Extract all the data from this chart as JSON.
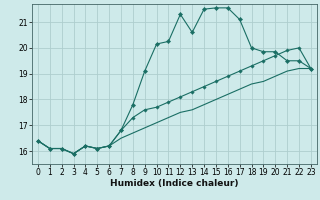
{
  "xlabel": "Humidex (Indice chaleur)",
  "bg_color": "#ceeaea",
  "grid_color": "#aecece",
  "line_color": "#1a6e64",
  "xlim": [
    -0.5,
    23.5
  ],
  "ylim": [
    15.5,
    21.7
  ],
  "xticks": [
    0,
    1,
    2,
    3,
    4,
    5,
    6,
    7,
    8,
    9,
    10,
    11,
    12,
    13,
    14,
    15,
    16,
    17,
    18,
    19,
    20,
    21,
    22,
    23
  ],
  "yticks": [
    16,
    17,
    18,
    19,
    20,
    21
  ],
  "line1_x": [
    0,
    1,
    2,
    3,
    4,
    5,
    6,
    7,
    8,
    9,
    10,
    11,
    12,
    13,
    14,
    15,
    16,
    17,
    18,
    19,
    20,
    21,
    22,
    23
  ],
  "line1_y": [
    16.4,
    16.1,
    16.1,
    15.9,
    16.2,
    16.1,
    16.2,
    16.8,
    17.8,
    19.1,
    20.15,
    20.25,
    21.3,
    20.6,
    21.5,
    21.55,
    21.55,
    21.1,
    20.0,
    19.85,
    19.85,
    19.5,
    19.5,
    19.2
  ],
  "line2_x": [
    0,
    1,
    2,
    3,
    4,
    5,
    6,
    7,
    8,
    9,
    10,
    11,
    12,
    13,
    14,
    15,
    16,
    17,
    18,
    19,
    20,
    21,
    22,
    23
  ],
  "line2_y": [
    16.4,
    16.1,
    16.1,
    15.9,
    16.2,
    16.1,
    16.2,
    16.8,
    17.3,
    17.6,
    17.7,
    17.9,
    18.1,
    18.3,
    18.5,
    18.7,
    18.9,
    19.1,
    19.3,
    19.5,
    19.7,
    19.9,
    20.0,
    19.2
  ],
  "line3_x": [
    0,
    1,
    2,
    3,
    4,
    5,
    6,
    7,
    8,
    9,
    10,
    11,
    12,
    13,
    14,
    15,
    16,
    17,
    18,
    19,
    20,
    21,
    22,
    23
  ],
  "line3_y": [
    16.4,
    16.1,
    16.1,
    15.9,
    16.2,
    16.1,
    16.2,
    16.5,
    16.7,
    16.9,
    17.1,
    17.3,
    17.5,
    17.6,
    17.8,
    18.0,
    18.2,
    18.4,
    18.6,
    18.7,
    18.9,
    19.1,
    19.2,
    19.2
  ]
}
